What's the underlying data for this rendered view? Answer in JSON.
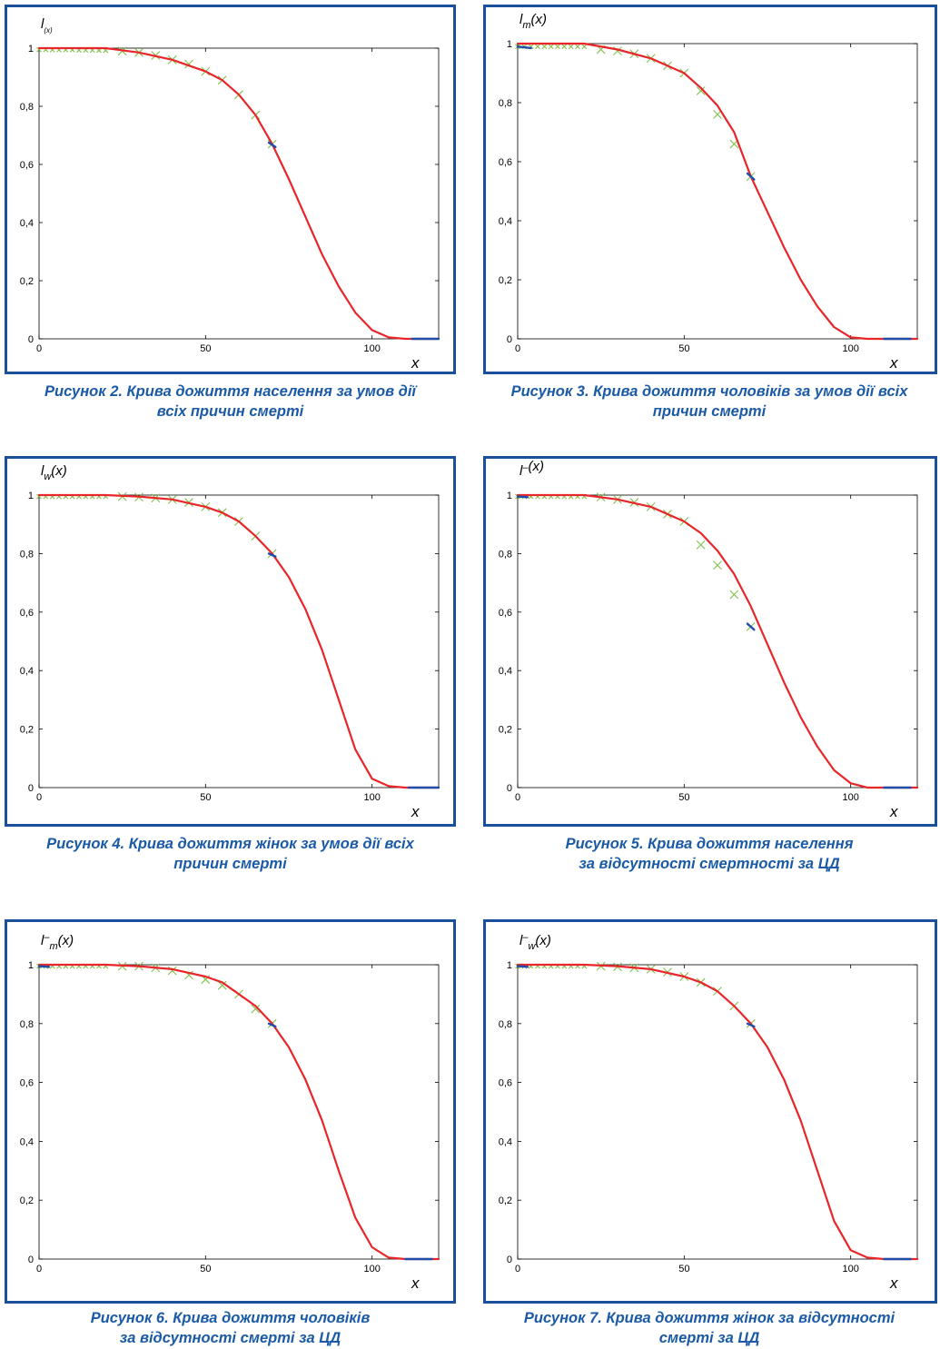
{
  "colors": {
    "frame": "#1a4f9c",
    "caption": "#1a5aa6",
    "fit_curve": "#e8262a",
    "observed_marker": "#7fc04a",
    "tail_segment": "#1f4fa8"
  },
  "figures": [
    {
      "caption_lines": [
        "Рисунок 2. Крива дожиття населення за умов дії",
        "всіх причин смерті"
      ],
      "ylabel_main": "l",
      "ylabel_sup": "",
      "ylabel_sub": "(x)",
      "ylabel_arg": "",
      "xlabel": "x"
    },
    {
      "caption_lines": [
        "Рисунок 3. Крива дожиття чоловіків за умов дії всіх",
        "причин смерті"
      ],
      "ylabel_main": "l",
      "ylabel_sup": "",
      "ylabel_sub": "m",
      "ylabel_arg": "(x)",
      "xlabel": "x"
    },
    {
      "caption_lines": [
        "Рисунок 4. Крива дожиття жінок за умов дії всіх",
        "причин смерті"
      ],
      "ylabel_main": "l",
      "ylabel_sup": "",
      "ylabel_sub": "w",
      "ylabel_arg": "(x)",
      "xlabel": "x"
    },
    {
      "caption_lines": [
        "Рисунок 5. Крива дожиття населення",
        "за відсутності смертності за ЦД"
      ],
      "ylabel_main": "l",
      "ylabel_sup": "–",
      "ylabel_sub": "",
      "ylabel_arg": "(x)",
      "xlabel": "x"
    },
    {
      "caption_lines": [
        "Рисунок 6. Крива дожиття чоловіків",
        "за відсутності смерті за ЦД"
      ],
      "ylabel_main": "l",
      "ylabel_sup": "–",
      "ylabel_sub": "m",
      "ylabel_arg": "(x)",
      "xlabel": "x"
    },
    {
      "caption_lines": [
        "Рисунок 7. Крива дожиття жінок за відсутності",
        "смерті за ЦД"
      ],
      "ylabel_main": "l",
      "ylabel_sup": "–",
      "ylabel_sub": "w",
      "ylabel_arg": "(x)",
      "xlabel": "x"
    }
  ],
  "chart_data": [
    {
      "type": "line",
      "xlim": [
        0,
        120
      ],
      "ylim": [
        0,
        1
      ],
      "xticks": [
        "0",
        "50",
        "100"
      ],
      "yticks": [
        "0",
        "0,2",
        "0,4",
        "0,6",
        "0,8",
        "1"
      ],
      "series": [
        {
          "style": "fit",
          "x": [
            0,
            10,
            20,
            30,
            40,
            50,
            55,
            60,
            65,
            70,
            75,
            80,
            85,
            90,
            95,
            100,
            105,
            110,
            120
          ],
          "y": [
            1,
            1,
            1,
            0.985,
            0.96,
            0.92,
            0.89,
            0.84,
            0.77,
            0.67,
            0.55,
            0.42,
            0.29,
            0.18,
            0.09,
            0.03,
            0.005,
            0,
            0
          ]
        },
        {
          "style": "observed",
          "x": [
            0,
            2,
            4,
            6,
            8,
            10,
            12,
            14,
            16,
            18,
            20,
            25,
            30,
            35,
            40,
            45,
            50,
            55,
            60,
            65,
            70
          ],
          "y": [
            0.995,
            0.995,
            0.994,
            0.994,
            0.994,
            0.994,
            0.993,
            0.993,
            0.993,
            0.992,
            0.992,
            0.99,
            0.985,
            0.975,
            0.96,
            0.945,
            0.92,
            0.89,
            0.84,
            0.77,
            0.67
          ]
        },
        {
          "style": "tail",
          "x": [
            69,
            71
          ],
          "y": [
            0.675,
            0.66
          ]
        },
        {
          "style": "tail",
          "x": [
            112,
            120
          ],
          "y": [
            0,
            0
          ]
        }
      ]
    },
    {
      "type": "line",
      "xlim": [
        0,
        120
      ],
      "ylim": [
        0,
        1
      ],
      "xticks": [
        "0",
        "50",
        "100"
      ],
      "yticks": [
        "0",
        "0,2",
        "0,4",
        "0,6",
        "0,8",
        "1"
      ],
      "series": [
        {
          "style": "fit",
          "x": [
            0,
            10,
            20,
            30,
            40,
            50,
            55,
            60,
            65,
            70,
            75,
            80,
            85,
            90,
            95,
            100,
            105,
            110,
            120
          ],
          "y": [
            1,
            1,
            1,
            0.98,
            0.95,
            0.9,
            0.85,
            0.79,
            0.7,
            0.55,
            0.43,
            0.31,
            0.2,
            0.11,
            0.04,
            0.005,
            0,
            0,
            0
          ]
        },
        {
          "style": "observed",
          "x": [
            0,
            2,
            4,
            6,
            8,
            10,
            12,
            14,
            16,
            18,
            20,
            25,
            30,
            35,
            40,
            45,
            50,
            55,
            60,
            65,
            70
          ],
          "y": [
            0.99,
            0.99,
            0.99,
            0.99,
            0.99,
            0.99,
            0.99,
            0.99,
            0.99,
            0.99,
            0.99,
            0.98,
            0.975,
            0.965,
            0.95,
            0.925,
            0.9,
            0.84,
            0.76,
            0.66,
            0.55
          ]
        },
        {
          "style": "tail",
          "x": [
            0,
            4
          ],
          "y": [
            0.99,
            0.985
          ]
        },
        {
          "style": "tail",
          "x": [
            69,
            71
          ],
          "y": [
            0.56,
            0.54
          ]
        },
        {
          "style": "tail",
          "x": [
            110,
            118
          ],
          "y": [
            0,
            0
          ]
        }
      ]
    },
    {
      "type": "line",
      "xlim": [
        0,
        120
      ],
      "ylim": [
        0,
        1
      ],
      "xticks": [
        "0",
        "50",
        "100"
      ],
      "yticks": [
        "0",
        "0,2",
        "0,4",
        "0,6",
        "0,8",
        "1"
      ],
      "series": [
        {
          "style": "fit",
          "x": [
            0,
            10,
            20,
            30,
            40,
            50,
            55,
            60,
            65,
            70,
            75,
            80,
            85,
            90,
            95,
            100,
            105,
            110,
            120
          ],
          "y": [
            1,
            1,
            1,
            0.995,
            0.985,
            0.96,
            0.94,
            0.91,
            0.86,
            0.8,
            0.72,
            0.61,
            0.47,
            0.3,
            0.13,
            0.03,
            0.005,
            0,
            0
          ]
        },
        {
          "style": "observed",
          "x": [
            0,
            2,
            4,
            6,
            8,
            10,
            12,
            14,
            16,
            18,
            20,
            25,
            30,
            35,
            40,
            45,
            50,
            55,
            60,
            65,
            70
          ],
          "y": [
            0.995,
            0.995,
            0.995,
            0.995,
            0.995,
            0.995,
            0.995,
            0.995,
            0.995,
            0.995,
            0.995,
            0.995,
            0.993,
            0.99,
            0.985,
            0.975,
            0.96,
            0.94,
            0.91,
            0.86,
            0.8
          ]
        },
        {
          "style": "tail",
          "x": [
            69,
            71
          ],
          "y": [
            0.8,
            0.79
          ]
        },
        {
          "style": "tail",
          "x": [
            111,
            120
          ],
          "y": [
            0,
            0
          ]
        }
      ]
    },
    {
      "type": "line",
      "xlim": [
        0,
        120
      ],
      "ylim": [
        0,
        1
      ],
      "xticks": [
        "0",
        "50",
        "100"
      ],
      "yticks": [
        "0",
        "0,2",
        "0,4",
        "0,6",
        "0,8",
        "1"
      ],
      "series": [
        {
          "style": "fit",
          "x": [
            0,
            10,
            20,
            30,
            40,
            50,
            55,
            60,
            65,
            70,
            75,
            80,
            85,
            90,
            95,
            100,
            105,
            110,
            120
          ],
          "y": [
            1,
            1,
            1,
            0.985,
            0.96,
            0.91,
            0.87,
            0.81,
            0.73,
            0.62,
            0.49,
            0.36,
            0.24,
            0.14,
            0.06,
            0.015,
            0,
            0,
            0
          ]
        },
        {
          "style": "observed",
          "x": [
            0,
            2,
            4,
            6,
            8,
            10,
            12,
            14,
            16,
            18,
            20,
            25,
            30,
            35,
            40,
            45,
            50,
            55,
            60,
            65,
            70
          ],
          "y": [
            0.995,
            0.995,
            0.995,
            0.995,
            0.995,
            0.995,
            0.995,
            0.995,
            0.995,
            0.995,
            0.995,
            0.993,
            0.985,
            0.975,
            0.96,
            0.935,
            0.91,
            0.83,
            0.76,
            0.66,
            0.55
          ]
        },
        {
          "style": "tail",
          "x": [
            0,
            3
          ],
          "y": [
            0.995,
            0.993
          ]
        },
        {
          "style": "tail",
          "x": [
            69,
            71
          ],
          "y": [
            0.56,
            0.54
          ]
        },
        {
          "style": "tail",
          "x": [
            110,
            118
          ],
          "y": [
            0,
            0
          ]
        }
      ]
    },
    {
      "type": "line",
      "xlim": [
        0,
        120
      ],
      "ylim": [
        0,
        1
      ],
      "xticks": [
        "0",
        "50",
        "100"
      ],
      "yticks": [
        "0",
        "0,2",
        "0,4",
        "0,6",
        "0,8",
        "1"
      ],
      "series": [
        {
          "style": "fit",
          "x": [
            0,
            10,
            20,
            30,
            40,
            50,
            55,
            60,
            65,
            70,
            75,
            80,
            85,
            90,
            95,
            100,
            105,
            110,
            120
          ],
          "y": [
            1,
            1,
            1,
            0.995,
            0.985,
            0.96,
            0.94,
            0.9,
            0.86,
            0.8,
            0.72,
            0.61,
            0.47,
            0.3,
            0.14,
            0.04,
            0.005,
            0,
            0
          ]
        },
        {
          "style": "observed",
          "x": [
            0,
            2,
            4,
            6,
            8,
            10,
            12,
            14,
            16,
            18,
            20,
            25,
            30,
            35,
            40,
            45,
            50,
            55,
            60,
            65,
            70
          ],
          "y": [
            0.995,
            0.995,
            0.995,
            0.995,
            0.995,
            0.995,
            0.995,
            0.995,
            0.995,
            0.995,
            0.995,
            0.995,
            0.995,
            0.99,
            0.98,
            0.965,
            0.95,
            0.93,
            0.9,
            0.85,
            0.8
          ]
        },
        {
          "style": "tail",
          "x": [
            0,
            3
          ],
          "y": [
            0.995,
            0.993
          ]
        },
        {
          "style": "tail",
          "x": [
            69,
            71
          ],
          "y": [
            0.8,
            0.79
          ]
        },
        {
          "style": "tail",
          "x": [
            110,
            118
          ],
          "y": [
            0,
            0
          ]
        }
      ]
    },
    {
      "type": "line",
      "xlim": [
        0,
        120
      ],
      "ylim": [
        0,
        1
      ],
      "xticks": [
        "0",
        "50",
        "100"
      ],
      "yticks": [
        "0",
        "0,2",
        "0,4",
        "0,6",
        "0,8",
        "1"
      ],
      "series": [
        {
          "style": "fit",
          "x": [
            0,
            10,
            20,
            30,
            40,
            50,
            55,
            60,
            65,
            70,
            75,
            80,
            85,
            90,
            95,
            100,
            105,
            110,
            120
          ],
          "y": [
            1,
            1,
            1,
            0.995,
            0.985,
            0.96,
            0.94,
            0.91,
            0.86,
            0.8,
            0.72,
            0.61,
            0.47,
            0.3,
            0.13,
            0.03,
            0.005,
            0,
            0
          ]
        },
        {
          "style": "observed",
          "x": [
            0,
            2,
            4,
            6,
            8,
            10,
            12,
            14,
            16,
            18,
            20,
            25,
            30,
            35,
            40,
            45,
            50,
            55,
            60,
            65,
            70
          ],
          "y": [
            0.995,
            0.995,
            0.995,
            0.995,
            0.995,
            0.995,
            0.995,
            0.995,
            0.995,
            0.995,
            0.995,
            0.995,
            0.993,
            0.99,
            0.985,
            0.975,
            0.96,
            0.94,
            0.91,
            0.86,
            0.8
          ]
        },
        {
          "style": "tail",
          "x": [
            0,
            3
          ],
          "y": [
            0.995,
            0.993
          ]
        },
        {
          "style": "tail",
          "x": [
            69,
            71
          ],
          "y": [
            0.8,
            0.79
          ]
        },
        {
          "style": "tail",
          "x": [
            110,
            118
          ],
          "y": [
            0,
            0
          ]
        }
      ]
    }
  ]
}
